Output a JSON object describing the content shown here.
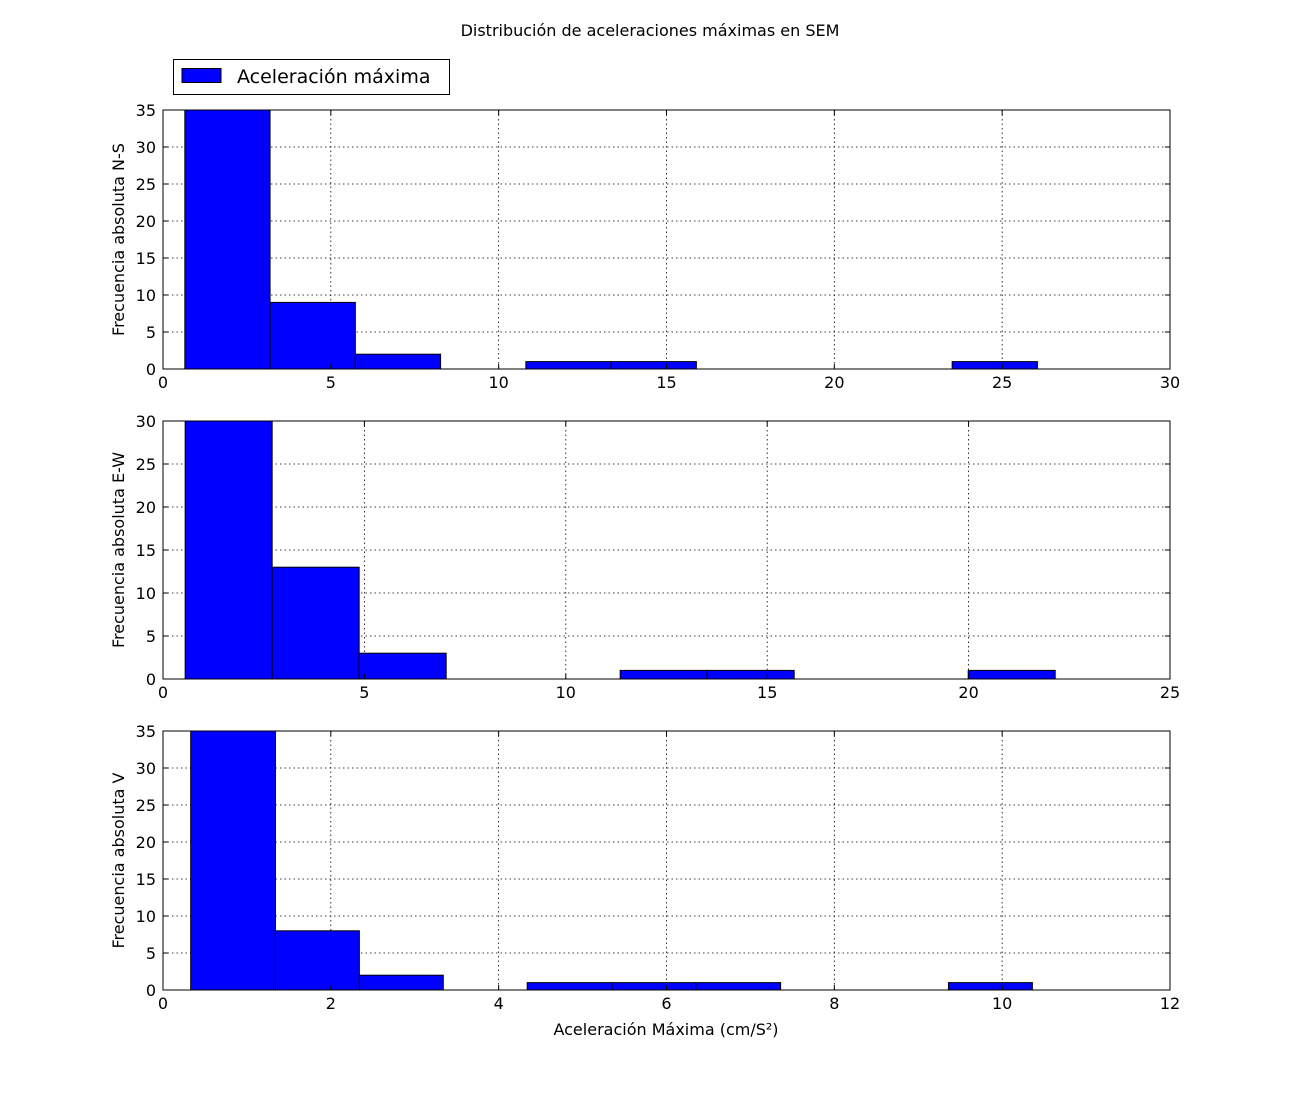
{
  "figure": {
    "title": "Distribución de aceleraciones máximas en SEM",
    "legend": {
      "label": "Aceleración máxima",
      "placement": "top-left, above first subplot"
    },
    "xlabel": "Aceleración Máxima (cm/S²)"
  },
  "chart_data": [
    {
      "type": "bar",
      "subtype": "histogram",
      "ylabel": "Frecuencia absoluta N-S",
      "xlim": [
        0,
        30
      ],
      "ylim": [
        0,
        35
      ],
      "xticks": [
        0,
        5,
        10,
        15,
        20,
        25,
        30
      ],
      "yticks": [
        0,
        5,
        10,
        15,
        20,
        25,
        30,
        35
      ],
      "grid": true,
      "color": "#0000ff",
      "bins": [
        {
          "start": 0.65,
          "end": 3.19,
          "value": 35
        },
        {
          "start": 3.19,
          "end": 5.73,
          "value": 9
        },
        {
          "start": 5.73,
          "end": 8.27,
          "value": 2
        },
        {
          "start": 8.27,
          "end": 10.81,
          "value": 0
        },
        {
          "start": 10.81,
          "end": 13.35,
          "value": 1
        },
        {
          "start": 13.35,
          "end": 15.89,
          "value": 1
        },
        {
          "start": 15.89,
          "end": 18.43,
          "value": 0
        },
        {
          "start": 18.43,
          "end": 20.97,
          "value": 0
        },
        {
          "start": 20.97,
          "end": 23.51,
          "value": 0
        },
        {
          "start": 23.51,
          "end": 26.05,
          "value": 1
        }
      ]
    },
    {
      "type": "bar",
      "subtype": "histogram",
      "ylabel": "Frecuencia absoluta E-W",
      "xlim": [
        0,
        25
      ],
      "ylim": [
        0,
        30
      ],
      "xticks": [
        0,
        5,
        10,
        15,
        20,
        25
      ],
      "yticks": [
        0,
        5,
        10,
        15,
        20,
        25,
        30
      ],
      "grid": true,
      "color": "#0000ff",
      "bins": [
        {
          "start": 0.55,
          "end": 2.71,
          "value": 30
        },
        {
          "start": 2.71,
          "end": 4.87,
          "value": 13
        },
        {
          "start": 4.87,
          "end": 7.03,
          "value": 3
        },
        {
          "start": 7.03,
          "end": 9.19,
          "value": 0
        },
        {
          "start": 9.19,
          "end": 11.35,
          "value": 0
        },
        {
          "start": 11.35,
          "end": 13.51,
          "value": 1
        },
        {
          "start": 13.51,
          "end": 15.67,
          "value": 1
        },
        {
          "start": 15.67,
          "end": 17.83,
          "value": 0
        },
        {
          "start": 17.83,
          "end": 19.99,
          "value": 0
        },
        {
          "start": 19.99,
          "end": 22.15,
          "value": 1
        }
      ]
    },
    {
      "type": "bar",
      "subtype": "histogram",
      "ylabel": "Frecuencia absoluta V",
      "xlim": [
        0,
        12
      ],
      "ylim": [
        0,
        35
      ],
      "xticks": [
        0,
        2,
        4,
        6,
        8,
        10,
        12
      ],
      "yticks": [
        0,
        5,
        10,
        15,
        20,
        25,
        30,
        35
      ],
      "grid": true,
      "color": "#0000ff",
      "bins": [
        {
          "start": 0.33,
          "end": 1.34,
          "value": 35
        },
        {
          "start": 1.34,
          "end": 2.34,
          "value": 8
        },
        {
          "start": 2.34,
          "end": 3.34,
          "value": 2
        },
        {
          "start": 3.34,
          "end": 4.34,
          "value": 0
        },
        {
          "start": 4.34,
          "end": 5.35,
          "value": 1
        },
        {
          "start": 5.35,
          "end": 6.35,
          "value": 1
        },
        {
          "start": 6.35,
          "end": 7.36,
          "value": 1
        },
        {
          "start": 7.36,
          "end": 8.36,
          "value": 0
        },
        {
          "start": 8.36,
          "end": 9.36,
          "value": 0
        },
        {
          "start": 9.36,
          "end": 10.36,
          "value": 1
        }
      ]
    }
  ]
}
